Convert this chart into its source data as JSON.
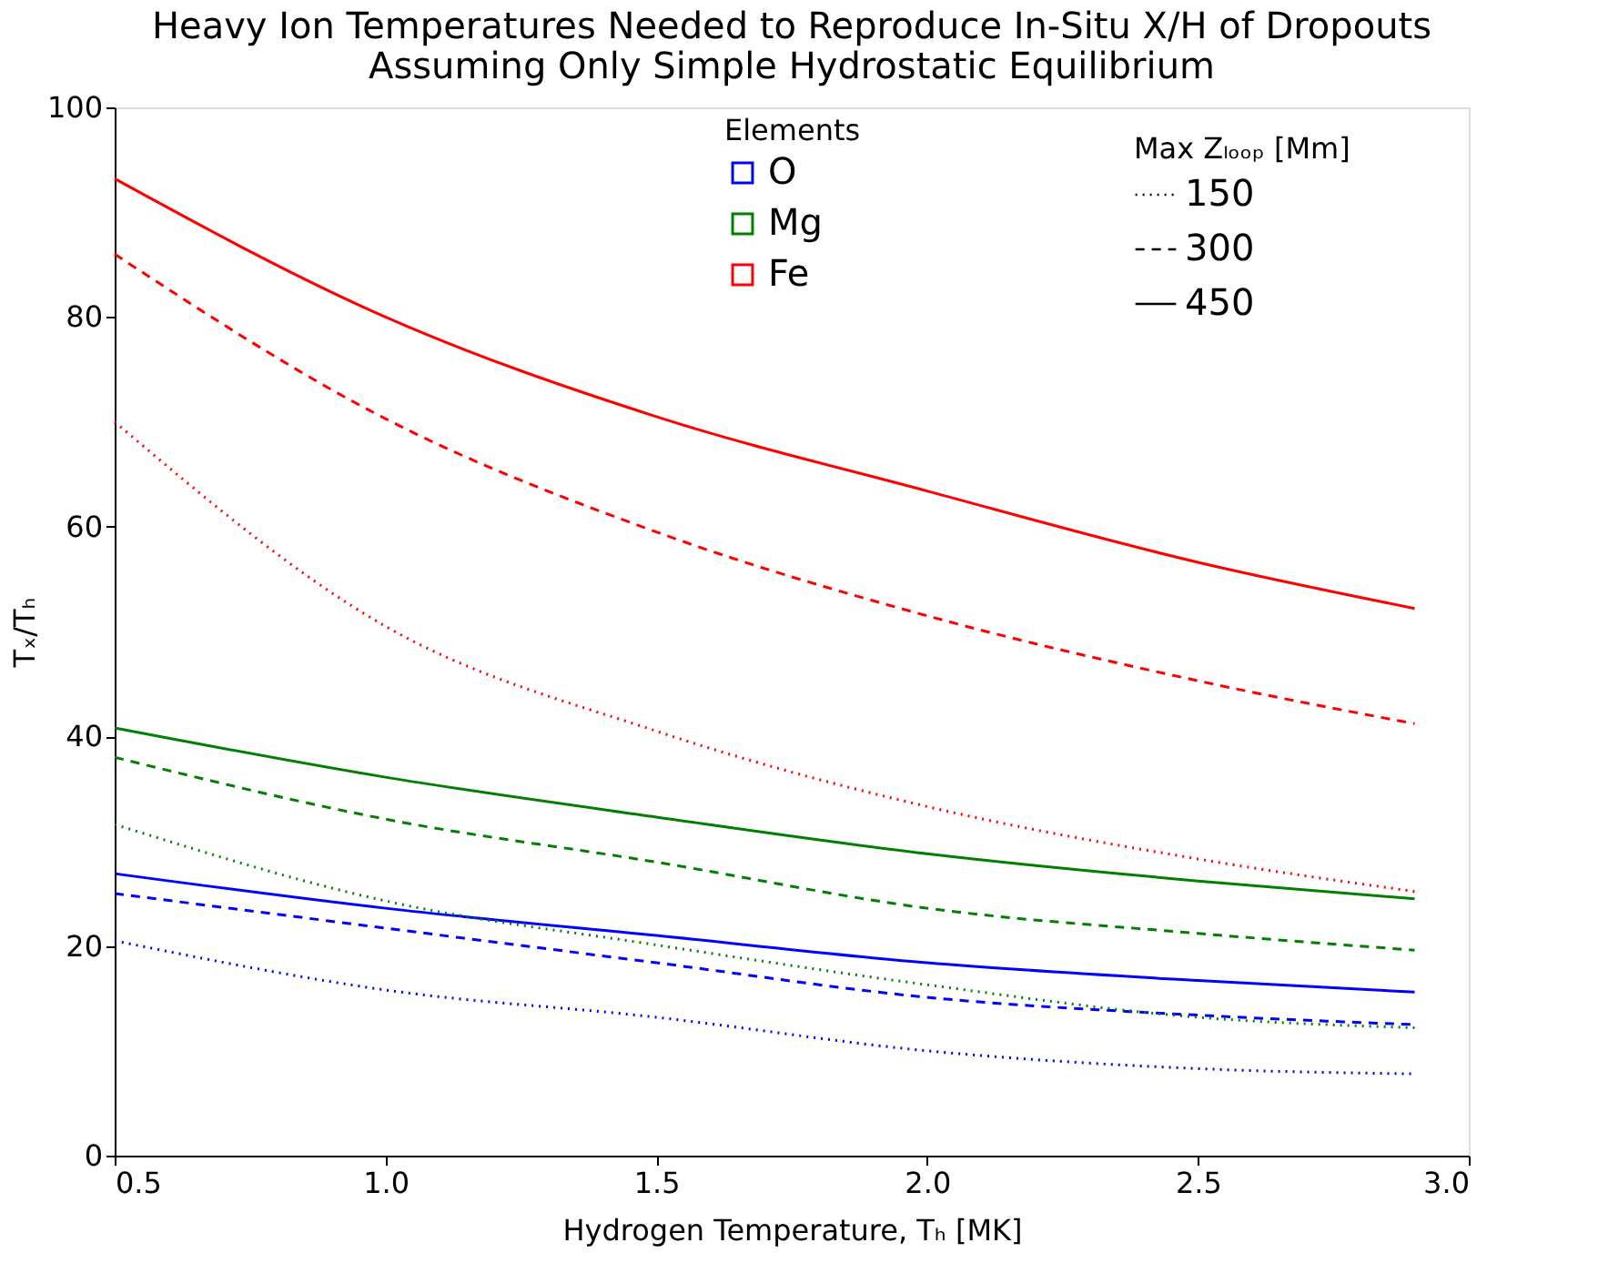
{
  "chart_data": {
    "type": "line",
    "title": "Heavy Ion Temperatures Needed to Reproduce In-Situ X/H of Dropouts",
    "subtitle": "Assuming Only Simple Hydrostatic Equilibrium",
    "xlabel": "Hydrogen Temperature, Tₕ  [MK]",
    "ylabel": "Tₓ/Tₕ",
    "x": [
      0.5,
      1.0,
      1.5,
      2.0,
      2.5,
      2.9
    ],
    "series": [
      {
        "name": "O",
        "color": "#0000ff",
        "line_style": "dotted",
        "values": [
          20.5,
          15.8,
          13.2,
          10.0,
          8.3,
          7.8
        ]
      },
      {
        "color": "#0000ff",
        "line_style": "dashed",
        "values": [
          25.0,
          21.7,
          18.4,
          15.1,
          13.4,
          12.5
        ]
      },
      {
        "color": "#0000ff",
        "line_style": "solid",
        "values": [
          26.9,
          23.6,
          21.0,
          18.4,
          16.7,
          15.6
        ]
      },
      {
        "name": "Mg",
        "color": "#008000",
        "line_style": "dotted",
        "values": [
          31.6,
          24.3,
          20.1,
          16.3,
          13.2,
          12.2
        ]
      },
      {
        "color": "#008000",
        "line_style": "dashed",
        "values": [
          38.0,
          32.1,
          28.0,
          23.6,
          21.2,
          19.6
        ]
      },
      {
        "color": "#008000",
        "line_style": "solid",
        "values": [
          40.8,
          36.1,
          32.3,
          28.8,
          26.2,
          24.5
        ]
      },
      {
        "name": "Fe",
        "color": "#ff0000",
        "line_style": "dotted",
        "values": [
          70.0,
          50.5,
          40.5,
          33.3,
          28.3,
          25.2
        ]
      },
      {
        "color": "#ff0000",
        "line_style": "dashed",
        "values": [
          86.0,
          70.3,
          59.5,
          51.5,
          45.3,
          41.2
        ]
      },
      {
        "color": "#ff0000",
        "line_style": "solid",
        "values": [
          93.2,
          80.0,
          70.5,
          63.4,
          56.6,
          52.2
        ]
      }
    ],
    "legend_title": [
      "Elements",
      "Max Zₗₒₒₚ [Mm]"
    ],
    "annotations": [
      "150",
      "300",
      "450"
    ],
    "legend": "top",
    "grid": false,
    "xlim": [
      0.5,
      3.0
    ],
    "xticks": [
      0.5,
      {
        "value": 1,
        "label": "1.0"
      },
      1.5,
      {
        "value": 2,
        "label": "2.0"
      },
      2.5,
      {
        "value": 3,
        "label": "3.0"
      }
    ],
    "ylim": [
      0,
      100
    ],
    "yticks": [
      0,
      20,
      40,
      60,
      80,
      100
    ]
  }
}
